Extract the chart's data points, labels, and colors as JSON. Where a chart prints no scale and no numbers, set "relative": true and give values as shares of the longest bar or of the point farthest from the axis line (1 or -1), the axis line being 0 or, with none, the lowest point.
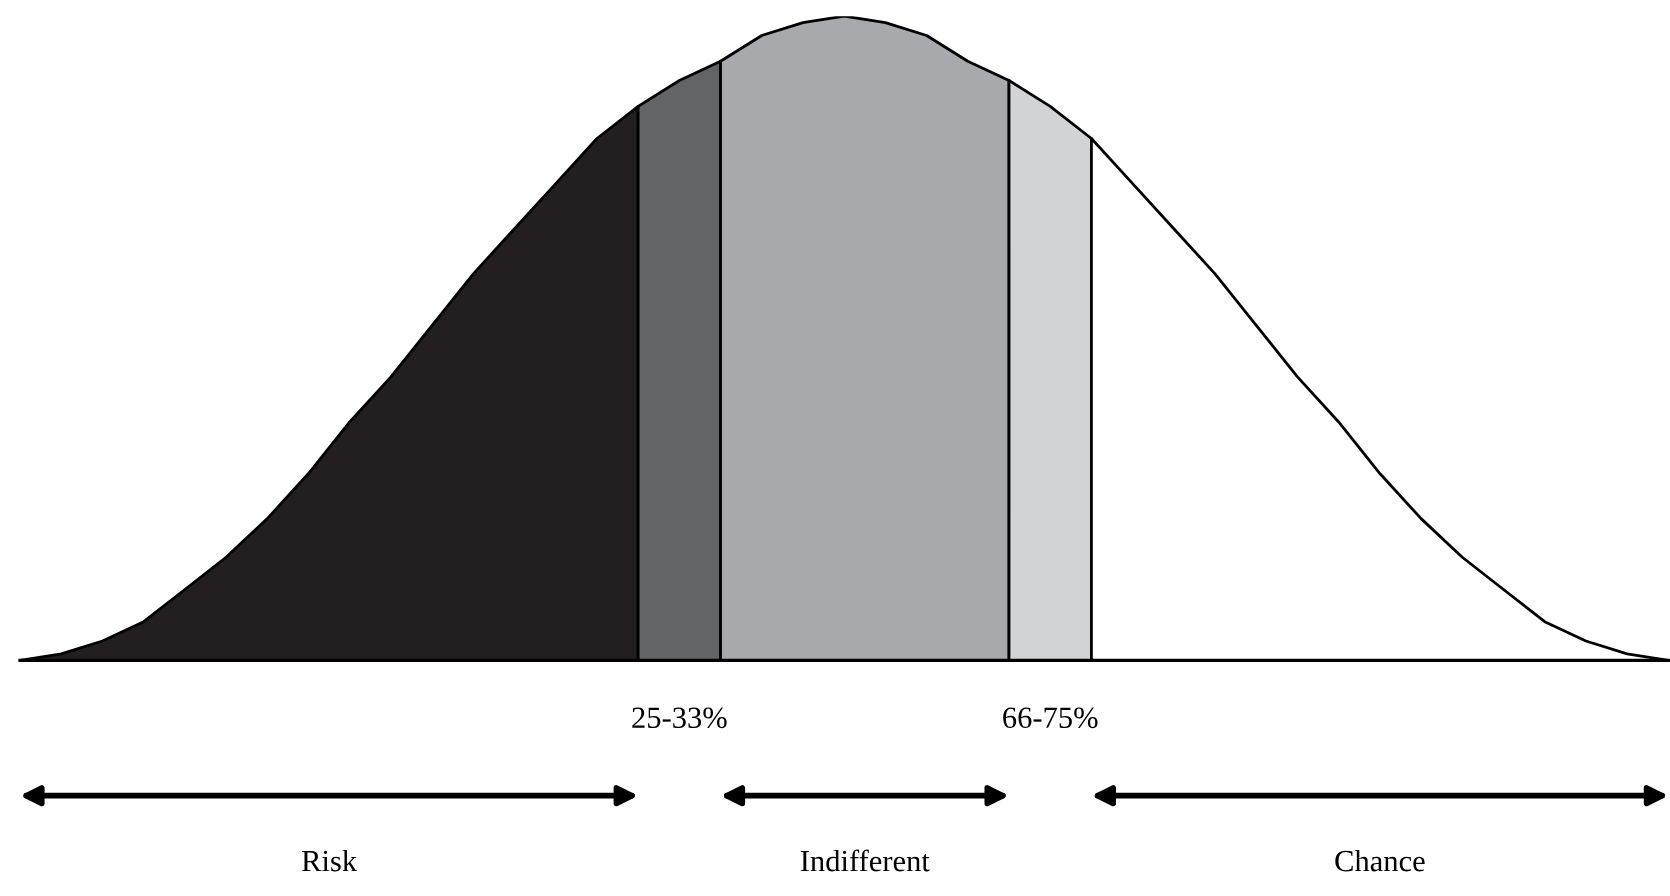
{
  "chart_data": {
    "type": "area",
    "relative": true,
    "categories": [
      null,
      null,
      null,
      null,
      null,
      null,
      null,
      null,
      null,
      null,
      null,
      null,
      null,
      null,
      null,
      null,
      null,
      null,
      null,
      null,
      null,
      null,
      null,
      null,
      null,
      null,
      null,
      null,
      null,
      null,
      null,
      null,
      null,
      null,
      null,
      null,
      null,
      null,
      null,
      null,
      null
    ],
    "series": [
      {
        "color": "#231f20",
        "values": [
          0,
          0.01,
          0.03,
          0.06,
          0.11,
          0.16,
          0.22,
          0.29,
          0.37,
          0.44,
          0.52,
          0.6,
          0.67,
          0.74,
          0.81,
          0.86,
          null,
          null,
          null,
          null,
          null,
          null,
          null,
          null,
          null,
          null,
          null,
          null,
          null,
          null,
          null,
          null,
          null,
          null,
          null,
          null,
          null,
          null,
          null,
          null,
          null
        ]
      },
      {
        "color": "#636466",
        "values": [
          null,
          null,
          null,
          null,
          null,
          null,
          null,
          null,
          null,
          null,
          null,
          null,
          null,
          null,
          null,
          0.86,
          0.9,
          0.93,
          null,
          null,
          null,
          null,
          null,
          null,
          null,
          null,
          null,
          null,
          null,
          null,
          null,
          null,
          null,
          null,
          null,
          null,
          null,
          null,
          null,
          null,
          null
        ]
      },
      {
        "color": "#a7a9ac",
        "values": [
          null,
          null,
          null,
          null,
          null,
          null,
          null,
          null,
          null,
          null,
          null,
          null,
          null,
          null,
          null,
          null,
          null,
          0.93,
          0.97,
          0.99,
          1.0,
          0.99,
          0.97,
          0.93,
          0.9,
          null,
          null,
          null,
          null,
          null,
          null,
          null,
          null,
          null,
          null,
          null,
          null,
          null,
          null,
          null,
          null
        ]
      },
      {
        "color": "#d1d3d4",
        "values": [
          null,
          null,
          null,
          null,
          null,
          null,
          null,
          null,
          null,
          null,
          null,
          null,
          null,
          null,
          null,
          null,
          null,
          null,
          null,
          null,
          null,
          null,
          null,
          null,
          0.9,
          0.86,
          0.81,
          null,
          null,
          null,
          null,
          null,
          null,
          null,
          null,
          null,
          null,
          null,
          null,
          null,
          null
        ]
      },
      {
        "color": "#ffffff",
        "values": [
          null,
          null,
          null,
          null,
          null,
          null,
          null,
          null,
          null,
          null,
          null,
          null,
          null,
          null,
          null,
          null,
          null,
          null,
          null,
          null,
          null,
          null,
          null,
          null,
          null,
          null,
          0.81,
          0.74,
          0.67,
          0.6,
          0.52,
          0.44,
          0.37,
          0.29,
          0.22,
          0.16,
          0.11,
          0.06,
          0.03,
          0.01,
          0
        ]
      }
    ],
    "annotations": [
      "25-33%",
      "66-75%",
      "Risk",
      "Indifferent",
      "Chance"
    ]
  }
}
